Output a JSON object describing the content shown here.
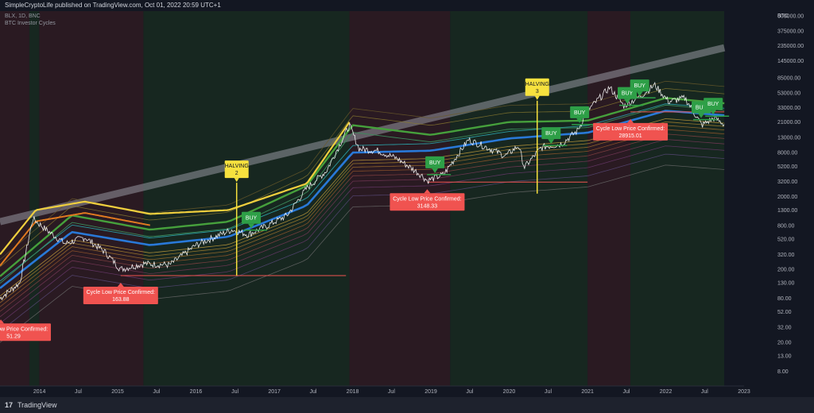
{
  "header": {
    "published": "SimpleCryptoLife published on TradingView.com, Oct 01, 2022 20:59 UTC+1"
  },
  "legend": {
    "symbol": "BLX, 1D, BNC",
    "indicator": "BTC Investor Cycles"
  },
  "footer": {
    "brand": "TradingView"
  },
  "colors": {
    "background": "#131722",
    "bear_zone": "#2a1a22",
    "bull_zone": "#172720",
    "price": "#ffffff",
    "buy": "#2e9f47",
    "halving": "#f7e13e",
    "cycle_low": "#f05350",
    "top_band": "#f0cf3e",
    "green_band": "#46a03c",
    "blue_band": "#2979d8",
    "trend_line": "#9598a1"
  },
  "chart_data": {
    "type": "line",
    "title": "",
    "scale": "log",
    "currency_label": "BTC",
    "xlim": [
      "2013-07-01",
      "2023-01-01"
    ],
    "ylim": [
      5,
      700000
    ],
    "x_ticks": [
      "2014",
      "Jul",
      "2015",
      "Jul",
      "2016",
      "Jul",
      "2017",
      "Jul",
      "2018",
      "Jul",
      "2019",
      "Jul",
      "2020",
      "Jul",
      "2021",
      "Jul",
      "2022",
      "Jul",
      "2023"
    ],
    "y_ticks": [
      600000,
      375000,
      235000,
      145000,
      85000,
      53000,
      33000,
      21000,
      13000,
      8000,
      5200,
      3200,
      2000,
      1300,
      800,
      520,
      320,
      200,
      130,
      80,
      52,
      32,
      20,
      13,
      8
    ],
    "y_tick_labels": [
      "600000.00",
      "375000.00",
      "235000.00",
      "145000.00",
      "85000.00",
      "53000.00",
      "33000.00",
      "21000.00",
      "13000.00",
      "8000.00",
      "5200.00",
      "3200.00",
      "2000.00",
      "1300.00",
      "800.00",
      "520.00",
      "320.00",
      "200.00",
      "130.00",
      "80.00",
      "52.00",
      "32.00",
      "20.00",
      "13.00",
      "8.00"
    ],
    "price_series": {
      "dates": [
        "2013-07-01",
        "2013-10-01",
        "2013-12-01",
        "2014-02-01",
        "2014-05-01",
        "2014-08-01",
        "2014-11-01",
        "2015-01-15",
        "2015-05-01",
        "2015-09-01",
        "2016-01-01",
        "2016-06-15",
        "2016-09-01",
        "2016-12-01",
        "2017-03-01",
        "2017-06-01",
        "2017-09-01",
        "2017-12-17",
        "2018-02-01",
        "2018-05-01",
        "2018-08-01",
        "2018-11-15",
        "2018-12-15",
        "2019-03-01",
        "2019-06-25",
        "2019-09-01",
        "2019-12-15",
        "2020-02-15",
        "2020-03-12",
        "2020-06-01",
        "2020-09-01",
        "2020-11-15",
        "2021-01-01",
        "2021-04-14",
        "2021-06-20",
        "2021-09-01",
        "2021-11-10",
        "2022-01-15",
        "2022-04-01",
        "2022-06-18",
        "2022-08-15",
        "2022-10-01"
      ],
      "values": [
        80,
        130,
        1000,
        700,
        450,
        550,
        350,
        200,
        240,
        230,
        430,
        700,
        600,
        800,
        1100,
        2600,
        4500,
        19000,
        9000,
        8500,
        6500,
        4000,
        3300,
        4000,
        12000,
        10000,
        7200,
        10000,
        5000,
        9500,
        10500,
        16000,
        30000,
        63000,
        35000,
        47000,
        68000,
        40000,
        45000,
        19000,
        24000,
        19500
      ]
    },
    "top_band": {
      "dates": [
        "2013-07-01",
        "2013-12-15",
        "2014-08-01",
        "2015-06-01",
        "2016-06-01",
        "2017-06-01",
        "2017-12-17"
      ],
      "values": [
        320,
        1300,
        1700,
        1150,
        1300,
        3000,
        21000
      ]
    },
    "green_band": {
      "dates": [
        "2013-07-01",
        "2014-06-01",
        "2015-06-01",
        "2016-06-01",
        "2017-06-01",
        "2018-01-01",
        "2019-01-01",
        "2020-01-01",
        "2021-01-01",
        "2022-01-01",
        "2022-10-01"
      ],
      "values": [
        160,
        1100,
        700,
        900,
        2800,
        19000,
        14000,
        21000,
        22000,
        45000,
        38000
      ]
    },
    "blue_band": {
      "dates": [
        "2013-07-01",
        "2014-06-01",
        "2015-06-01",
        "2016-06-01",
        "2017-06-01",
        "2018-01-01",
        "2019-01-01",
        "2020-01-01",
        "2021-01-01",
        "2022-01-01",
        "2022-10-01"
      ],
      "values": [
        110,
        650,
        430,
        560,
        1500,
        8000,
        8500,
        12500,
        15000,
        30000,
        26000
      ]
    },
    "trend_line": {
      "dates": [
        "2013-07-01",
        "2022-10-01"
      ],
      "values": [
        900,
        220000
      ]
    },
    "cycle_lows": [
      {
        "date": "2013-07-05",
        "value": 51.29,
        "label": "Cycle Low Price Confirmed:",
        "price": "51.29",
        "line_end": "2013-07-05"
      },
      {
        "date": "2015-01-15",
        "value": 163.88,
        "label": "Cycle Low Price Confirmed:",
        "price": "163.88",
        "line_end": "2017-12-01"
      },
      {
        "date": "2018-12-15",
        "value": 3148.33,
        "label": "Cycle Low Price Confirmed:",
        "price": "3148.33",
        "line_end": "2021-01-01"
      },
      {
        "date": "2021-07-20",
        "value": 28915.01,
        "label": "Cycle Low Price Confirmed:",
        "price": "28915.01",
        "line_end": "2022-10-01"
      }
    ],
    "halvings": [
      {
        "date": "2016-07-09",
        "label": "HALVING",
        "number": "2",
        "value": 650
      },
      {
        "date": "2020-05-11",
        "label": "HALVING",
        "number": "3",
        "value": 8700
      }
    ],
    "buy_signals": [
      {
        "date": "2016-09-15",
        "value": 640,
        "label": "BUY"
      },
      {
        "date": "2019-01-20",
        "value": 3700,
        "label": "BUY"
      },
      {
        "date": "2020-07-15",
        "value": 9300,
        "label": "BUY"
      },
      {
        "date": "2020-11-25",
        "value": 18000,
        "label": "BUY"
      },
      {
        "date": "2021-07-05",
        "value": 33000,
        "label": "BUY"
      },
      {
        "date": "2021-09-01",
        "value": 42000,
        "label": "BUY"
      },
      {
        "date": "2022-06-15",
        "value": 21000,
        "label": "BUY"
      },
      {
        "date": "2022-08-10",
        "value": 23500,
        "label": "BUY"
      }
    ],
    "zones": [
      {
        "start": "2013-07-01",
        "end": "2013-11-15",
        "kind": "bear"
      },
      {
        "start": "2013-11-15",
        "end": "2013-12-31",
        "kind": "bull"
      },
      {
        "start": "2013-12-31",
        "end": "2015-05-01",
        "kind": "bear"
      },
      {
        "start": "2015-05-01",
        "end": "2017-12-17",
        "kind": "bull"
      },
      {
        "start": "2017-12-17",
        "end": "2019-04-01",
        "kind": "bear"
      },
      {
        "start": "2019-04-01",
        "end": "2021-01-01",
        "kind": "bull"
      },
      {
        "start": "2021-01-01",
        "end": "2021-07-20",
        "kind": "bear"
      },
      {
        "start": "2021-07-20",
        "end": "2022-10-01",
        "kind": "bull"
      }
    ]
  }
}
